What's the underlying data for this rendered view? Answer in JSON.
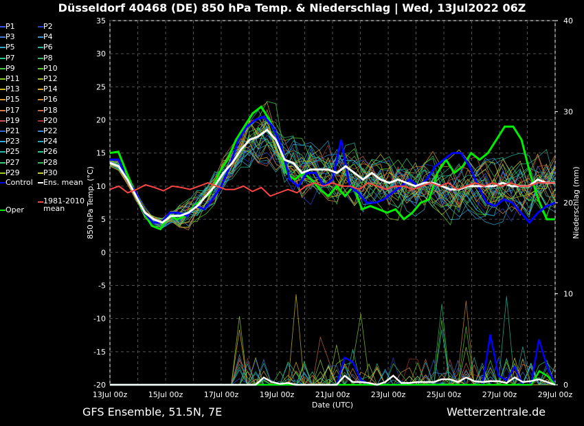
{
  "title": "Düsseldorf 40468 (DE)  850 hPa Temp. & Niederschlag | Wed, 13Jul2022 06Z",
  "footer_left": "GFS Ensemble, 51.5N, 7E",
  "footer_right": "Wetterzentrale.de",
  "legend": [
    {
      "label": "P1",
      "color": "#3355ff"
    },
    {
      "label": "P2",
      "color": "#2244cc"
    },
    {
      "label": "P3",
      "color": "#4477dd"
    },
    {
      "label": "P4",
      "color": "#3399cc"
    },
    {
      "label": "P5",
      "color": "#33aacc"
    },
    {
      "label": "P6",
      "color": "#22bb99"
    },
    {
      "label": "P7",
      "color": "#22cc88"
    },
    {
      "label": "P8",
      "color": "#33bb66"
    },
    {
      "label": "P9",
      "color": "#44cc44"
    },
    {
      "label": "P10",
      "color": "#55cc22"
    },
    {
      "label": "P11",
      "color": "#88cc22"
    },
    {
      "label": "P12",
      "color": "#aabb22"
    },
    {
      "label": "P13",
      "color": "#ccbb22"
    },
    {
      "label": "P14",
      "color": "#ddaa22"
    },
    {
      "label": "P15",
      "color": "#dd9933"
    },
    {
      "label": "P16",
      "color": "#cc8833"
    },
    {
      "label": "P17",
      "color": "#dd7744"
    },
    {
      "label": "P18",
      "color": "#cc6644"
    },
    {
      "label": "P19",
      "color": "#cc5555"
    },
    {
      "label": "P20",
      "color": "#aa3333"
    },
    {
      "label": "P21",
      "color": "#3366cc"
    },
    {
      "label": "P22",
      "color": "#3388dd"
    },
    {
      "label": "P23",
      "color": "#33aadd"
    },
    {
      "label": "P24",
      "color": "#22aabb"
    },
    {
      "label": "P25",
      "color": "#22bbaa"
    },
    {
      "label": "P26",
      "color": "#22cc99"
    },
    {
      "label": "P27",
      "color": "#33cc77"
    },
    {
      "label": "P28",
      "color": "#33bb55"
    },
    {
      "label": "P29",
      "color": "#99cc22"
    },
    {
      "label": "P30",
      "color": "#cccc22"
    },
    {
      "label": "Control",
      "color": "#0000ff"
    },
    {
      "label": "Ens. mean",
      "color": "#ffffff"
    },
    {
      "label": "Oper",
      "color": "#00ee00"
    },
    {
      "label": "1981-2010 mean",
      "color": "#ff4444"
    }
  ],
  "chart_data": {
    "type": "line",
    "xlabel": "Date (UTC)",
    "ylabel_left": "850 hPa Temp. (°C)",
    "ylabel_right": "Niederschlag (mm)",
    "ylim_left": [
      -20,
      35
    ],
    "ylim_right": [
      0,
      40
    ],
    "yticks_left": [
      "35",
      "30",
      "25",
      "20",
      "15",
      "10",
      "5",
      "0",
      "-5",
      "-10",
      "-15",
      "-20"
    ],
    "yticks_right": [
      "40",
      "30",
      "20",
      "10",
      "0"
    ],
    "xlim_days": [
      0,
      16
    ],
    "xticks": [
      "13Jul 00z",
      "15Jul 00z",
      "17Jul 00z",
      "19Jul 00z",
      "21Jul 00z",
      "23Jul 00z",
      "25Jul 00z",
      "27Jul 00z",
      "29Jul 00z"
    ],
    "grid": true,
    "series_temp": [
      {
        "name": "Oper",
        "color": "#00ee00",
        "values": [
          15,
          15.2,
          12,
          9,
          6,
          4,
          3.5,
          5.5,
          5,
          5.5,
          7,
          8,
          9,
          12,
          14,
          17,
          19,
          21,
          22,
          20,
          17,
          12,
          11,
          12,
          11,
          9.5,
          8.5,
          10,
          8.5,
          10,
          6.5,
          7,
          6.5,
          6,
          6.5,
          5,
          6,
          7.5,
          8,
          12,
          14,
          12,
          13,
          15,
          14,
          15,
          17,
          19,
          19,
          17,
          12,
          8,
          5,
          5
        ]
      },
      {
        "name": "Control",
        "color": "#0000ff",
        "values": [
          14,
          14,
          11,
          9,
          6,
          4.5,
          4.5,
          6,
          6,
          5.5,
          7,
          6.5,
          8,
          10,
          13,
          17,
          19,
          20,
          20.5,
          19,
          16,
          11,
          10,
          12,
          12,
          10,
          11,
          17,
          10,
          9,
          7.5,
          7.5,
          8,
          9,
          10,
          11,
          10,
          11,
          13,
          14,
          15,
          15,
          13,
          10,
          7.5,
          7,
          8,
          7.5,
          6,
          4.5,
          6,
          7,
          7.5
        ]
      },
      {
        "name": "Ens. mean",
        "color": "#ffffff",
        "values": [
          13.5,
          13,
          11,
          8.5,
          6,
          5,
          4.5,
          5.5,
          5.5,
          6,
          7,
          8.5,
          10,
          12,
          13.5,
          15.5,
          17,
          17.5,
          18.5,
          17,
          14,
          13.5,
          12,
          12.5,
          12.5,
          12.5,
          12,
          13,
          12,
          11,
          12,
          11,
          10.5,
          11,
          10.5,
          10,
          10.5,
          10.5,
          10,
          9.5,
          9.5,
          10,
          10,
          10,
          10,
          10.5,
          10,
          10,
          10,
          11,
          10.5,
          10.5
        ]
      },
      {
        "name": "1981-2010 mean",
        "color": "#ff4444",
        "values": [
          9.5,
          10,
          9,
          9.5,
          10.2,
          9.8,
          9.3,
          10,
          9.8,
          9.5,
          10,
          10.5,
          10,
          9.5,
          9.5,
          10,
          9.2,
          9.8,
          8.5,
          9,
          9.5,
          9,
          10,
          10.5,
          10,
          10.5,
          10,
          10,
          9.5,
          10.5,
          10,
          9.5,
          10,
          10,
          9.5,
          10,
          10.5,
          10,
          10.5,
          9.5,
          10,
          10.5,
          10,
          10.5,
          10,
          10.5,
          10,
          10,
          10.5,
          10.5,
          10.5
        ]
      }
    ],
    "series_precip": [
      {
        "name": "Control",
        "color": "#0000ff",
        "values": [
          0,
          0,
          0,
          0,
          0,
          0,
          0,
          0,
          0,
          0,
          0,
          0,
          0,
          0,
          0,
          0,
          0,
          0,
          0,
          0,
          0,
          0,
          0,
          0,
          0,
          0,
          0,
          0,
          0,
          3,
          2.5,
          0.5,
          0,
          0,
          0,
          0,
          0,
          0,
          0,
          0,
          0,
          0,
          0,
          0,
          0,
          0,
          0,
          5.5,
          1,
          0.5,
          2,
          0,
          0,
          5,
          2,
          0
        ]
      },
      {
        "name": "Oper",
        "color": "#00ee00",
        "values": [
          0,
          0,
          0,
          0,
          0,
          0,
          0,
          0,
          0,
          0,
          0,
          0,
          0,
          0,
          0,
          0,
          0,
          0,
          0,
          0,
          0,
          0,
          0,
          0,
          0,
          0,
          0,
          0,
          0,
          0,
          0,
          0,
          0,
          0,
          0,
          0,
          0,
          0,
          0,
          0,
          0,
          0,
          0,
          0,
          0,
          0,
          0,
          0,
          0,
          0,
          0,
          0,
          0,
          0,
          1.5,
          1,
          0
        ]
      },
      {
        "name": "Ens. mean",
        "color": "#ffffff",
        "values": [
          0,
          0,
          0,
          0,
          0,
          0,
          0,
          0,
          0,
          0,
          0,
          0,
          0,
          0,
          0,
          0,
          0,
          0,
          0,
          0.8,
          0.3,
          0.1,
          0.2,
          0,
          0,
          0,
          0,
          0,
          0,
          1,
          0.3,
          0.3,
          0.2,
          0,
          0.3,
          1,
          0.2,
          0.2,
          0.3,
          0.3,
          0.3,
          0.6,
          0.6,
          0.3,
          0.8,
          0.4,
          0.3,
          0.4,
          0.4,
          0.2,
          0.8,
          0.3,
          0.4,
          0.6,
          0.3,
          0
        ]
      }
    ]
  }
}
